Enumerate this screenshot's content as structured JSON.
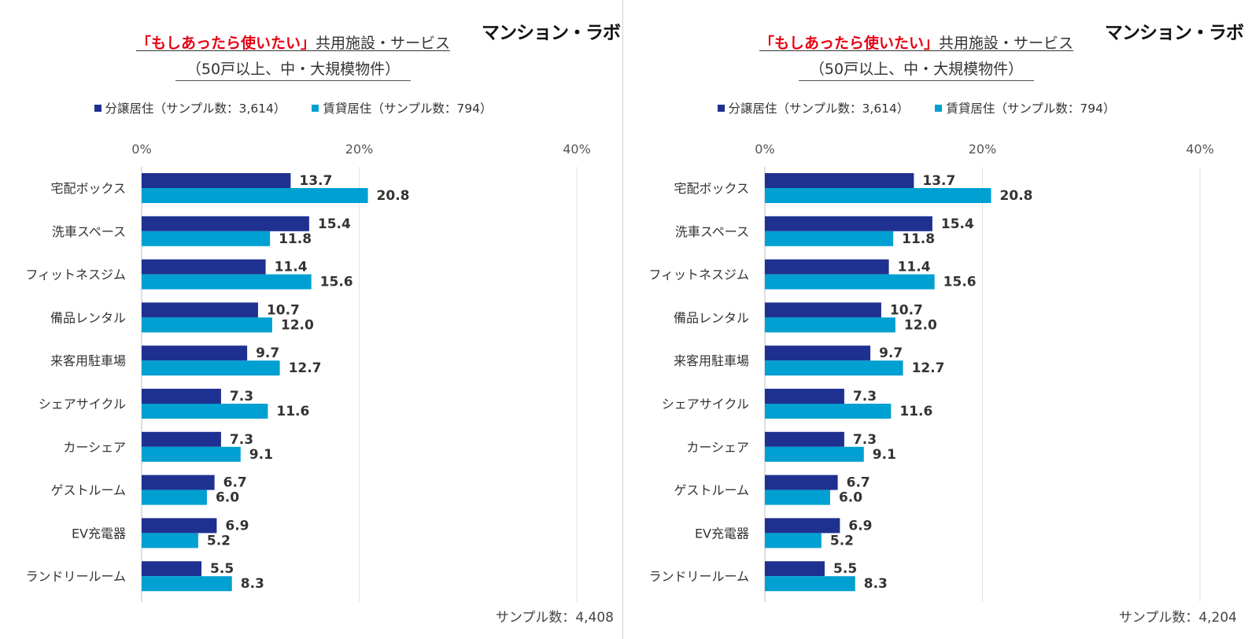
{
  "brand": "マンション・ラボ",
  "title_highlight": "「もしあったら使いたい」",
  "title_rest": "共用施設・サービス",
  "subtitle": "（50戸以上、中・大規模物件）",
  "legend": [
    {
      "label": "分譲居住（サンプル数：3,614）",
      "color": "#1f3190"
    },
    {
      "label": "賃貸居住（サンプル数：794）",
      "color": "#00a0d2"
    }
  ],
  "panels": [
    {
      "footer": "サンプル数：4,408"
    },
    {
      "footer": "サンプル数：4,204"
    }
  ],
  "chart_data": {
    "type": "bar",
    "orientation": "horizontal",
    "categories": [
      "宅配ボックス",
      "洗車スペース",
      "フィットネスジム",
      "備品レンタル",
      "来客用駐車場",
      "シェアサイクル",
      "カーシェア",
      "ゲストルーム",
      "EV充電器",
      "ランドリールーム"
    ],
    "series": [
      {
        "name": "分譲居住（サンプル数：3,614）",
        "color": "#1f3190",
        "values": [
          13.7,
          15.4,
          11.4,
          10.7,
          9.7,
          7.3,
          7.3,
          6.7,
          6.9,
          5.5
        ]
      },
      {
        "name": "賃貸居住（サンプル数：794）",
        "color": "#00a0d2",
        "values": [
          20.8,
          11.8,
          15.6,
          12.0,
          12.7,
          11.6,
          9.1,
          6.0,
          5.2,
          8.3
        ]
      }
    ],
    "xlim": [
      0,
      40
    ],
    "xticks": [
      "0%",
      "20%",
      "40%"
    ],
    "grid": true
  }
}
